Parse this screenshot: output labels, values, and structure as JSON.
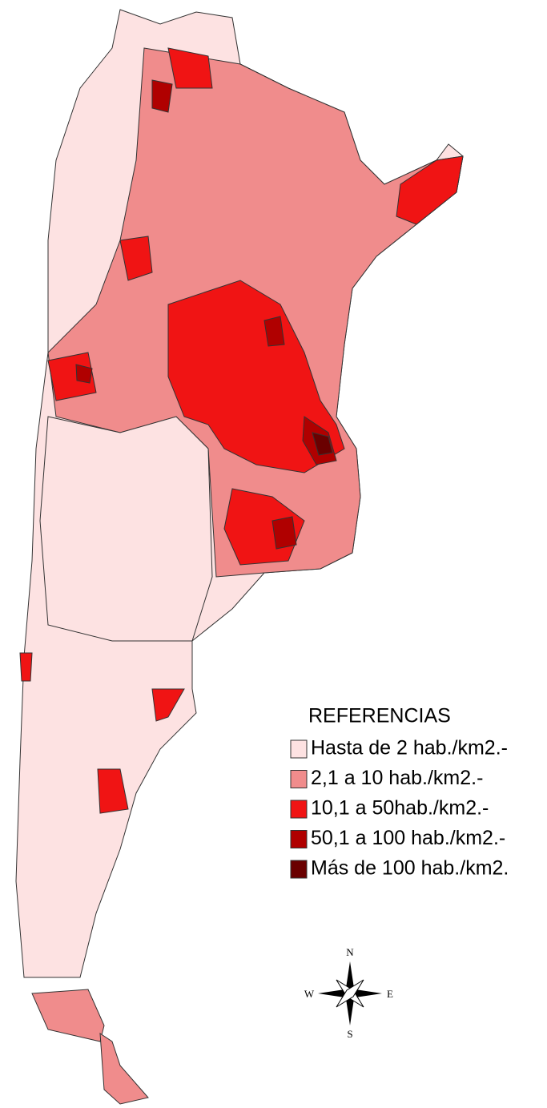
{
  "legend": {
    "title": "REFERENCIAS",
    "items": [
      {
        "label": "Hasta de 2 hab./km2.-",
        "color": "#fde2e2"
      },
      {
        "label": "2,1 a 10 hab./km2.-",
        "color": "#f08c8c"
      },
      {
        "label": "10,1 a 50hab./km2.-",
        "color": "#f01414"
      },
      {
        "label": "50,1 a 100 hab./km2.-",
        "color": "#b00000"
      },
      {
        "label": "Más de 100 hab./km2.",
        "color": "#6a0000"
      }
    ]
  },
  "compass": {
    "north": "N",
    "south": "S",
    "east": "E",
    "west": "W"
  }
}
